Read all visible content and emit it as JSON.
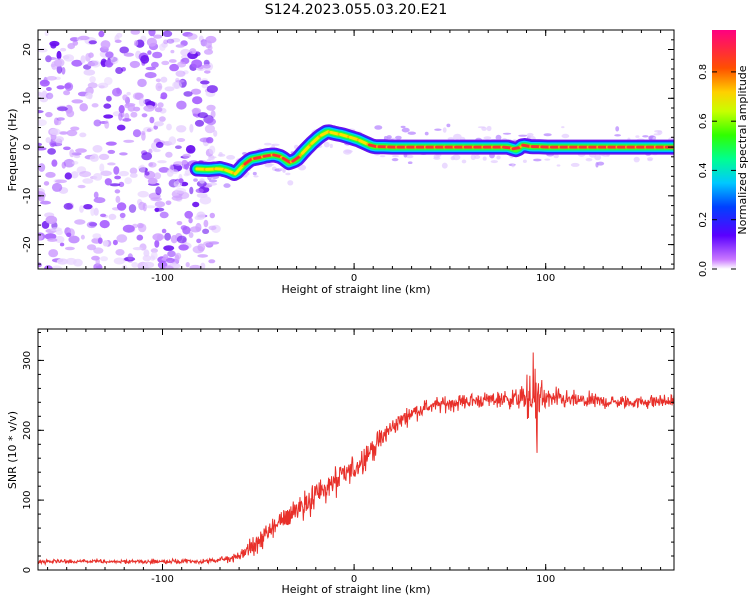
{
  "figure": {
    "title": "S124.2023.055.03.20.E21"
  },
  "chart_data": [
    {
      "type": "heatmap",
      "xlabel": "Height of straight line (km)",
      "ylabel": "Frequency (Hz)",
      "xlim": [
        -165,
        167
      ],
      "ylim": [
        -25,
        24
      ],
      "xticks": [
        -100,
        0,
        100
      ],
      "yticks": [
        -20,
        -10,
        0,
        10,
        20
      ],
      "colorbar": {
        "label": "Normalized spectral amplitude",
        "range": [
          0,
          0.97
        ],
        "ticks": [
          "0.0",
          "0.2",
          "0.4",
          "0.6",
          "0.8"
        ],
        "colormap": "gist_rainbow_r"
      },
      "noise_region_x": [
        -165,
        -82
      ],
      "ridge": {
        "x": [
          -82,
          -76,
          -70,
          -66,
          -62,
          -58,
          -54,
          -50,
          -46,
          -42,
          -38,
          -34,
          -30,
          -26,
          -22,
          -18,
          -14,
          -10,
          -6,
          -2,
          2,
          6,
          10,
          20,
          40,
          60,
          80,
          85,
          88,
          92,
          100,
          120,
          140,
          167
        ],
        "freq": [
          -4.5,
          -4.6,
          -4.4,
          -4.8,
          -5.5,
          -3.8,
          -2.5,
          -2.2,
          -1.8,
          -1.6,
          -2.0,
          -3.2,
          -2.6,
          -0.8,
          0.8,
          2.2,
          3.2,
          2.8,
          2.5,
          2.0,
          1.5,
          0.8,
          0.1,
          0.0,
          0.0,
          0.0,
          0.0,
          -0.6,
          0.4,
          0.1,
          0.0,
          0.0,
          0.0,
          0.0
        ]
      }
    },
    {
      "type": "line",
      "xlabel": "Height of straight line (km)",
      "ylabel": "SNR (10 * v/v)",
      "xlim": [
        -165,
        167
      ],
      "ylim": [
        0,
        345
      ],
      "xticks": [
        -100,
        0,
        100
      ],
      "yticks": [
        0,
        100,
        200,
        300
      ],
      "color": "#e8302a",
      "envelope": {
        "x": [
          -165,
          -100,
          -80,
          -70,
          -60,
          -50,
          -40,
          -30,
          -20,
          -10,
          0,
          10,
          20,
          30,
          40,
          60,
          80,
          90,
          95,
          100,
          120,
          140,
          167
        ],
        "mean": [
          12,
          12,
          12,
          14,
          20,
          40,
          65,
          88,
          108,
          125,
          145,
          175,
          205,
          225,
          235,
          242,
          245,
          245,
          240,
          245,
          242,
          240,
          242
        ],
        "noise": [
          4,
          4,
          4,
          5,
          10,
          18,
          25,
          28,
          32,
          30,
          28,
          22,
          18,
          14,
          14,
          14,
          16,
          25,
          70,
          22,
          14,
          12,
          12
        ]
      }
    }
  ]
}
